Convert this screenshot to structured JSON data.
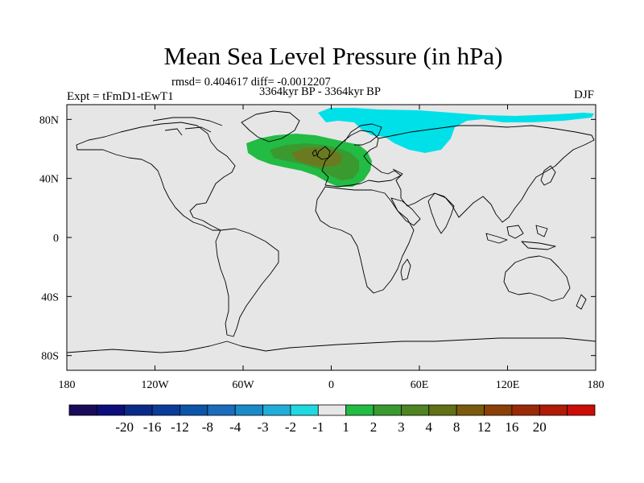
{
  "title": "Mean Sea Level Pressure (in hPa)",
  "stats_line": "rmsd= 0.404617 diff= -0.0012207",
  "period_line": "3364kyr BP - 3364kyr BP",
  "experiment_label": "Expt = tFmD1-tEwT1",
  "season_label": "DJF",
  "map": {
    "land_outline_color": "#000000",
    "background_color": "#e6e6e6",
    "lon_range": [
      -180,
      180
    ],
    "lat_range": [
      -90,
      90
    ],
    "x_ticks": [
      {
        "value": -180,
        "label": "180"
      },
      {
        "value": -120,
        "label": "120W"
      },
      {
        "value": -60,
        "label": "60W"
      },
      {
        "value": 0,
        "label": "0"
      },
      {
        "value": 60,
        "label": "60E"
      },
      {
        "value": 120,
        "label": "120E"
      },
      {
        "value": 180,
        "label": "180"
      }
    ],
    "y_ticks": [
      {
        "value": 80,
        "label": "80N"
      },
      {
        "value": 40,
        "label": "40N"
      },
      {
        "value": 0,
        "label": "0"
      },
      {
        "value": -40,
        "label": "40S"
      },
      {
        "value": -80,
        "label": "80S"
      }
    ],
    "anomaly_regions": [
      {
        "name": "north-atlantic-europe-positive",
        "level": "1 to 2",
        "color": "#22bb44"
      },
      {
        "name": "north-atlantic-center-positive",
        "level": "2 to 3",
        "color": "#3a9a30"
      },
      {
        "name": "north-atlantic-core-positive",
        "level": "3 to 4",
        "color": "#6b7a20"
      },
      {
        "name": "arctic-eurasia-negative",
        "level": "-2 to -1",
        "color": "#00e0e8"
      }
    ]
  },
  "colorbar": {
    "colors": [
      "#1a0a5a",
      "#0c0c7a",
      "#0a2a8a",
      "#0a3c9a",
      "#0a55aa",
      "#1a6cbc",
      "#1a8ac8",
      "#20aed8",
      "#20d8e0",
      "#e6e6e6",
      "#22bb44",
      "#3a9a30",
      "#4e8422",
      "#627016",
      "#7a5a0e",
      "#8a4008",
      "#9a2a06",
      "#b01a06",
      "#cc0c06"
    ],
    "labels": [
      "-20",
      "-16",
      "-12",
      "-8",
      "-4",
      "-3",
      "-2",
      "-1",
      "1",
      "2",
      "3",
      "4",
      "8",
      "12",
      "16",
      "20"
    ]
  }
}
